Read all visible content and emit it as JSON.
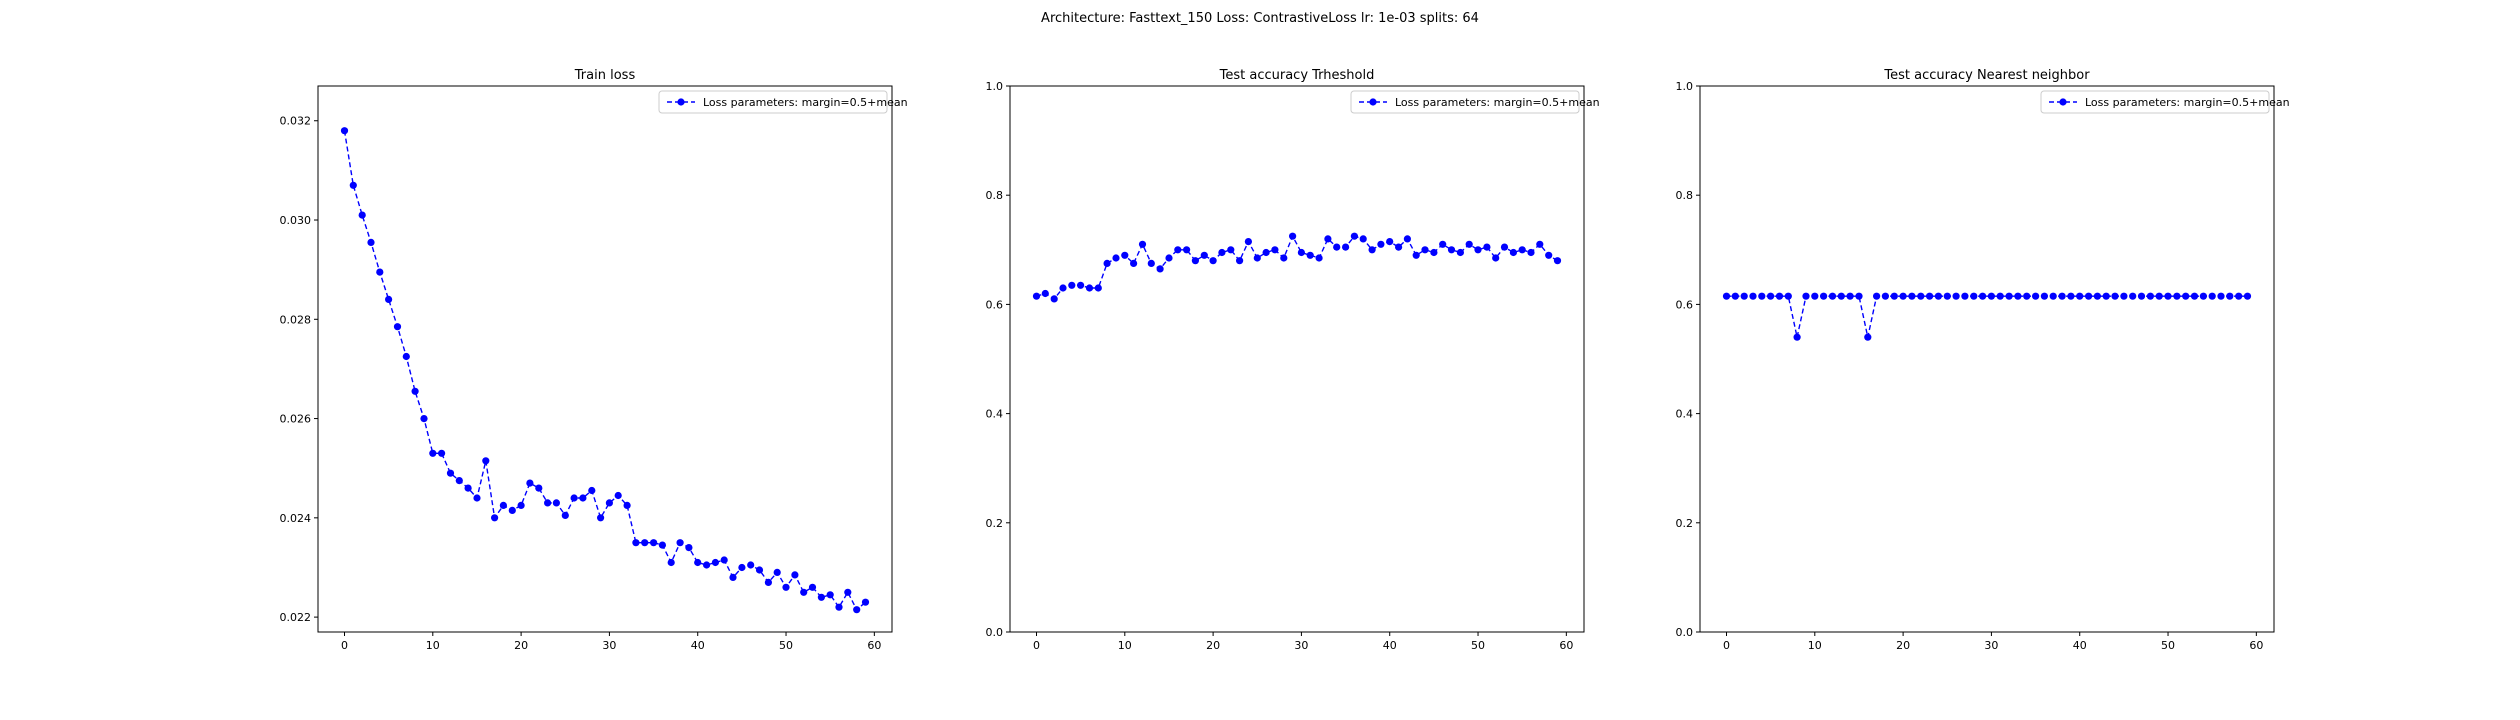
{
  "suptitle": "Architecture: Fasttext_150 Loss: ContrastiveLoss lr: 1e-03 splits: 64",
  "colors": {
    "series": "#0000ff",
    "axes": "#000000",
    "background": "#ffffff"
  },
  "chart_data": [
    {
      "type": "line",
      "title": "Train loss",
      "xlabel": "",
      "ylabel": "",
      "xlim": [
        -3,
        62
      ],
      "ylim": [
        0.0217,
        0.0327
      ],
      "xticks": [
        0,
        10,
        20,
        30,
        40,
        50,
        60
      ],
      "yticks": [
        0.022,
        0.024,
        0.026,
        0.028,
        0.03,
        0.032
      ],
      "ytick_labels": [
        "0.022",
        "0.024",
        "0.026",
        "0.028",
        "0.030",
        "0.032"
      ],
      "grid": false,
      "legend_position": "upper right",
      "series": [
        {
          "name": "Loss parameters: margin=0.5+mean",
          "marker": "circle",
          "linestyle": "dashed",
          "color": "#0000ff",
          "x": [
            0,
            1,
            2,
            3,
            4,
            5,
            6,
            7,
            8,
            9,
            10,
            11,
            12,
            13,
            14,
            15,
            16,
            17,
            18,
            19,
            20,
            21,
            22,
            23,
            24,
            25,
            26,
            27,
            28,
            29,
            30,
            31,
            32,
            33,
            34,
            35,
            36,
            37,
            38,
            39,
            40,
            41,
            42,
            43,
            44,
            45,
            46,
            47,
            48,
            49,
            50,
            51,
            52,
            53,
            54,
            55,
            56,
            57,
            58,
            59
          ],
          "y": [
            0.0318,
            0.0307,
            0.0301,
            0.02955,
            0.02895,
            0.0284,
            0.02785,
            0.02725,
            0.02655,
            0.026,
            0.0253,
            0.0253,
            0.0249,
            0.02475,
            0.0246,
            0.0244,
            0.02515,
            0.024,
            0.02425,
            0.02415,
            0.02425,
            0.0247,
            0.0246,
            0.0243,
            0.0243,
            0.02405,
            0.0244,
            0.0244,
            0.02455,
            0.024,
            0.0243,
            0.02445,
            0.02425,
            0.0235,
            0.0235,
            0.0235,
            0.02345,
            0.0231,
            0.0235,
            0.0234,
            0.0231,
            0.02305,
            0.0231,
            0.02315,
            0.0228,
            0.023,
            0.02305,
            0.02295,
            0.0227,
            0.0229,
            0.0226,
            0.02285,
            0.0225,
            0.0226,
            0.0224,
            0.02245,
            0.0222,
            0.0225,
            0.02215,
            0.0223
          ]
        }
      ]
    },
    {
      "type": "line",
      "title": "Test accuracy Trheshold",
      "xlabel": "",
      "ylabel": "",
      "xlim": [
        -3,
        62
      ],
      "ylim": [
        0.0,
        1.0
      ],
      "xticks": [
        0,
        10,
        20,
        30,
        40,
        50,
        60
      ],
      "yticks": [
        0.0,
        0.2,
        0.4,
        0.6,
        0.8,
        1.0
      ],
      "ytick_labels": [
        "0.0",
        "0.2",
        "0.4",
        "0.6",
        "0.8",
        "1.0"
      ],
      "grid": false,
      "legend_position": "upper right",
      "series": [
        {
          "name": "Loss parameters: margin=0.5+mean",
          "marker": "circle",
          "linestyle": "dashed",
          "color": "#0000ff",
          "x": [
            0,
            1,
            2,
            3,
            4,
            5,
            6,
            7,
            8,
            9,
            10,
            11,
            12,
            13,
            14,
            15,
            16,
            17,
            18,
            19,
            20,
            21,
            22,
            23,
            24,
            25,
            26,
            27,
            28,
            29,
            30,
            31,
            32,
            33,
            34,
            35,
            36,
            37,
            38,
            39,
            40,
            41,
            42,
            43,
            44,
            45,
            46,
            47,
            48,
            49,
            50,
            51,
            52,
            53,
            54,
            55,
            56,
            57,
            58,
            59
          ],
          "y": [
            0.615,
            0.62,
            0.61,
            0.63,
            0.635,
            0.635,
            0.63,
            0.63,
            0.675,
            0.685,
            0.69,
            0.675,
            0.71,
            0.675,
            0.665,
            0.685,
            0.7,
            0.7,
            0.68,
            0.69,
            0.68,
            0.695,
            0.7,
            0.68,
            0.715,
            0.685,
            0.695,
            0.7,
            0.685,
            0.725,
            0.695,
            0.69,
            0.685,
            0.72,
            0.705,
            0.705,
            0.725,
            0.72,
            0.7,
            0.71,
            0.715,
            0.705,
            0.72,
            0.69,
            0.7,
            0.695,
            0.71,
            0.7,
            0.695,
            0.71,
            0.7,
            0.705,
            0.685,
            0.705,
            0.695,
            0.7,
            0.695,
            0.71,
            0.69,
            0.68
          ]
        }
      ]
    },
    {
      "type": "line",
      "title": "Test accuracy Nearest neighbor",
      "xlabel": "",
      "ylabel": "",
      "xlim": [
        -3,
        62
      ],
      "ylim": [
        0.0,
        1.0
      ],
      "xticks": [
        0,
        10,
        20,
        30,
        40,
        50,
        60
      ],
      "yticks": [
        0.0,
        0.2,
        0.4,
        0.6,
        0.8,
        1.0
      ],
      "ytick_labels": [
        "0.0",
        "0.2",
        "0.4",
        "0.6",
        "0.8",
        "1.0"
      ],
      "grid": false,
      "legend_position": "upper right",
      "series": [
        {
          "name": "Loss parameters: margin=0.5+mean",
          "marker": "circle",
          "linestyle": "dashed",
          "color": "#0000ff",
          "x": [
            0,
            1,
            2,
            3,
            4,
            5,
            6,
            7,
            8,
            9,
            10,
            11,
            12,
            13,
            14,
            15,
            16,
            17,
            18,
            19,
            20,
            21,
            22,
            23,
            24,
            25,
            26,
            27,
            28,
            29,
            30,
            31,
            32,
            33,
            34,
            35,
            36,
            37,
            38,
            39,
            40,
            41,
            42,
            43,
            44,
            45,
            46,
            47,
            48,
            49,
            50,
            51,
            52,
            53,
            54,
            55,
            56,
            57,
            58,
            59
          ],
          "y": [
            0.615,
            0.615,
            0.615,
            0.615,
            0.615,
            0.615,
            0.615,
            0.615,
            0.54,
            0.615,
            0.615,
            0.615,
            0.615,
            0.615,
            0.615,
            0.615,
            0.54,
            0.615,
            0.615,
            0.615,
            0.615,
            0.615,
            0.615,
            0.615,
            0.615,
            0.615,
            0.615,
            0.615,
            0.615,
            0.615,
            0.615,
            0.615,
            0.615,
            0.615,
            0.615,
            0.615,
            0.615,
            0.615,
            0.615,
            0.615,
            0.615,
            0.615,
            0.615,
            0.615,
            0.615,
            0.615,
            0.615,
            0.615,
            0.615,
            0.615,
            0.615,
            0.615,
            0.615,
            0.615,
            0.615,
            0.615,
            0.615,
            0.615,
            0.615,
            0.615
          ]
        }
      ]
    }
  ]
}
